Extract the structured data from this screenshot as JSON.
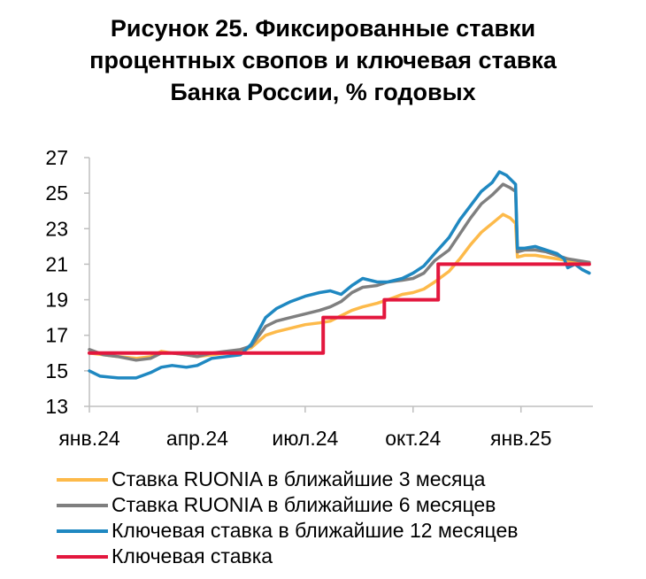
{
  "title_lines": [
    "Рисунок 25. Фиксированные ставки",
    "процентных свопов и ключевая ставка",
    "Банка России, % годовых"
  ],
  "chart_data": {
    "type": "line",
    "title": "Рисунок 25. Фиксированные ставки процентных свопов и ключевая ставка Банка России, % годовых",
    "xlabel": "",
    "ylabel": "",
    "ylim": [
      13,
      27
    ],
    "yticks": [
      13,
      15,
      17,
      19,
      21,
      23,
      25,
      27
    ],
    "xlim": [
      0,
      14
    ],
    "xticks": [
      {
        "x": 0,
        "label": "янв.24"
      },
      {
        "x": 3,
        "label": "апр.24"
      },
      {
        "x": 6,
        "label": "июл.24"
      },
      {
        "x": 9,
        "label": "окт.24"
      },
      {
        "x": 12,
        "label": "янв.25"
      }
    ],
    "x_unit": "months since Jan 2024",
    "grid": false,
    "legend_position": "bottom",
    "series": [
      {
        "name": "Ставка RUONIA в ближайшие 3 месяца",
        "color": "#FDBA4A",
        "points": [
          [
            0,
            16.0
          ],
          [
            0.4,
            15.9
          ],
          [
            0.8,
            15.8
          ],
          [
            1.3,
            15.7
          ],
          [
            1.7,
            15.8
          ],
          [
            2.0,
            16.1
          ],
          [
            2.3,
            16.0
          ],
          [
            2.7,
            15.9
          ],
          [
            3.0,
            15.8
          ],
          [
            3.4,
            15.9
          ],
          [
            3.8,
            16.0
          ],
          [
            4.2,
            16.1
          ],
          [
            4.5,
            16.3
          ],
          [
            4.9,
            17.0
          ],
          [
            5.2,
            17.2
          ],
          [
            5.6,
            17.4
          ],
          [
            6.0,
            17.6
          ],
          [
            6.4,
            17.7
          ],
          [
            6.7,
            17.8
          ],
          [
            7.0,
            18.1
          ],
          [
            7.3,
            18.4
          ],
          [
            7.6,
            18.6
          ],
          [
            8.0,
            18.8
          ],
          [
            8.3,
            19.0
          ],
          [
            8.7,
            19.3
          ],
          [
            9.0,
            19.4
          ],
          [
            9.3,
            19.6
          ],
          [
            9.6,
            20.0
          ],
          [
            10.0,
            20.6
          ],
          [
            10.3,
            21.3
          ],
          [
            10.6,
            22.1
          ],
          [
            10.9,
            22.8
          ],
          [
            11.2,
            23.3
          ],
          [
            11.5,
            23.8
          ],
          [
            11.7,
            23.6
          ],
          [
            11.85,
            23.3
          ],
          [
            11.9,
            21.4
          ],
          [
            12.1,
            21.5
          ],
          [
            12.4,
            21.5
          ],
          [
            12.7,
            21.4
          ],
          [
            13.0,
            21.3
          ],
          [
            13.3,
            21.2
          ],
          [
            13.6,
            21.1
          ],
          [
            13.9,
            21.1
          ]
        ]
      },
      {
        "name": "Ставка RUONIA в ближайшие 6 месяцев",
        "color": "#7F7F7F",
        "points": [
          [
            0,
            16.2
          ],
          [
            0.4,
            15.9
          ],
          [
            0.8,
            15.8
          ],
          [
            1.3,
            15.6
          ],
          [
            1.7,
            15.7
          ],
          [
            2.0,
            16.0
          ],
          [
            2.3,
            16.0
          ],
          [
            2.7,
            15.9
          ],
          [
            3.0,
            15.8
          ],
          [
            3.4,
            16.0
          ],
          [
            3.8,
            16.1
          ],
          [
            4.2,
            16.2
          ],
          [
            4.5,
            16.4
          ],
          [
            4.9,
            17.5
          ],
          [
            5.2,
            17.8
          ],
          [
            5.6,
            18.0
          ],
          [
            6.0,
            18.2
          ],
          [
            6.4,
            18.4
          ],
          [
            6.7,
            18.6
          ],
          [
            7.0,
            18.9
          ],
          [
            7.3,
            19.4
          ],
          [
            7.6,
            19.7
          ],
          [
            8.0,
            19.8
          ],
          [
            8.3,
            20.0
          ],
          [
            8.7,
            20.1
          ],
          [
            9.0,
            20.2
          ],
          [
            9.3,
            20.5
          ],
          [
            9.6,
            21.2
          ],
          [
            10.0,
            21.8
          ],
          [
            10.3,
            22.7
          ],
          [
            10.6,
            23.6
          ],
          [
            10.9,
            24.4
          ],
          [
            11.2,
            24.9
          ],
          [
            11.5,
            25.5
          ],
          [
            11.7,
            25.3
          ],
          [
            11.85,
            25.1
          ],
          [
            11.9,
            21.7
          ],
          [
            12.1,
            21.8
          ],
          [
            12.4,
            21.8
          ],
          [
            12.7,
            21.7
          ],
          [
            13.0,
            21.5
          ],
          [
            13.3,
            21.3
          ],
          [
            13.6,
            21.2
          ],
          [
            13.9,
            21.1
          ]
        ]
      },
      {
        "name": "Ключевая ставка в ближайшие 12 месяцев",
        "color": "#1F88C1",
        "points": [
          [
            0,
            15.0
          ],
          [
            0.3,
            14.7
          ],
          [
            0.8,
            14.6
          ],
          [
            1.3,
            14.6
          ],
          [
            1.7,
            14.9
          ],
          [
            2.0,
            15.2
          ],
          [
            2.3,
            15.3
          ],
          [
            2.7,
            15.2
          ],
          [
            3.0,
            15.3
          ],
          [
            3.4,
            15.7
          ],
          [
            3.8,
            15.8
          ],
          [
            4.2,
            15.9
          ],
          [
            4.5,
            16.5
          ],
          [
            4.9,
            18.0
          ],
          [
            5.2,
            18.5
          ],
          [
            5.6,
            18.9
          ],
          [
            6.0,
            19.2
          ],
          [
            6.4,
            19.4
          ],
          [
            6.7,
            19.5
          ],
          [
            7.0,
            19.3
          ],
          [
            7.3,
            19.8
          ],
          [
            7.6,
            20.2
          ],
          [
            8.0,
            20.0
          ],
          [
            8.3,
            20.0
          ],
          [
            8.7,
            20.2
          ],
          [
            9.0,
            20.5
          ],
          [
            9.3,
            20.9
          ],
          [
            9.6,
            21.6
          ],
          [
            10.0,
            22.5
          ],
          [
            10.3,
            23.5
          ],
          [
            10.6,
            24.3
          ],
          [
            10.9,
            25.1
          ],
          [
            11.2,
            25.6
          ],
          [
            11.4,
            26.2
          ],
          [
            11.6,
            26.0
          ],
          [
            11.85,
            25.5
          ],
          [
            11.9,
            21.9
          ],
          [
            12.1,
            21.9
          ],
          [
            12.4,
            22.0
          ],
          [
            12.7,
            21.8
          ],
          [
            13.0,
            21.6
          ],
          [
            13.2,
            21.3
          ],
          [
            13.3,
            20.8
          ],
          [
            13.5,
            21.0
          ],
          [
            13.7,
            20.7
          ],
          [
            13.9,
            20.5
          ]
        ]
      },
      {
        "name": "Ключевая ставка",
        "color": "#E3173E",
        "points": [
          [
            0,
            16
          ],
          [
            6.5,
            16
          ],
          [
            6.5,
            18
          ],
          [
            8.2,
            18
          ],
          [
            8.2,
            19
          ],
          [
            9.7,
            19
          ],
          [
            9.7,
            21
          ],
          [
            13.9,
            21
          ]
        ]
      }
    ]
  }
}
